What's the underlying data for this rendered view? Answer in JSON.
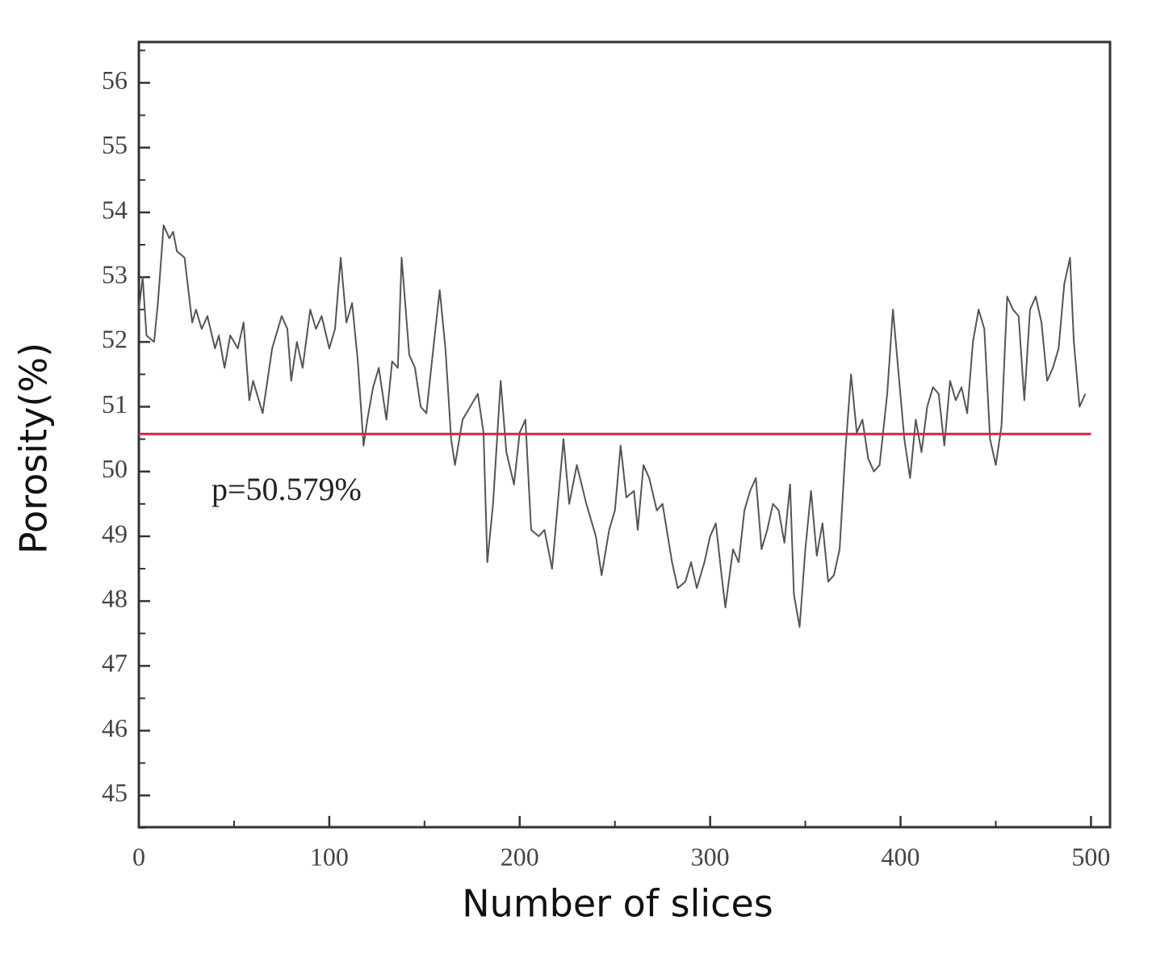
{
  "chart_data": {
    "type": "line",
    "xlabel": "Number of slices",
    "ylabel": "Porosity(%)",
    "x": [
      0,
      2,
      4,
      8,
      10,
      13,
      16,
      18,
      20,
      24,
      28,
      30,
      33,
      36,
      40,
      42,
      45,
      48,
      52,
      55,
      58,
      60,
      65,
      70,
      75,
      78,
      80,
      83,
      86,
      90,
      93,
      96,
      100,
      103,
      106,
      109,
      112,
      115,
      118,
      120,
      123,
      126,
      130,
      133,
      136,
      138,
      142,
      145,
      148,
      151,
      155,
      158,
      161,
      164,
      166,
      170,
      174,
      178,
      181,
      183,
      186,
      190,
      193,
      197,
      200,
      203,
      206,
      210,
      213,
      217,
      220,
      223,
      226,
      230,
      235,
      240,
      243,
      247,
      250,
      253,
      256,
      260,
      262,
      265,
      268,
      272,
      275,
      280,
      283,
      287,
      290,
      293,
      297,
      300,
      303,
      306,
      308,
      312,
      315,
      318,
      321,
      324,
      327,
      330,
      333,
      336,
      339,
      342,
      344,
      347,
      350,
      353,
      356,
      359,
      362,
      365,
      368,
      371,
      374,
      377,
      380,
      383,
      386,
      389,
      393,
      396,
      399,
      402,
      405,
      408,
      411,
      414,
      417,
      420,
      423,
      426,
      429,
      432,
      435,
      438,
      441,
      444,
      447,
      450,
      453,
      456,
      459,
      462,
      465,
      468,
      471,
      474,
      477,
      480,
      483,
      486,
      489,
      491,
      494,
      497
    ],
    "series": [
      {
        "name": "Porosity",
        "color": "#555555",
        "values": [
          52.5,
          53.0,
          52.1,
          52.0,
          52.6,
          53.8,
          53.6,
          53.7,
          53.4,
          53.3,
          52.3,
          52.5,
          52.2,
          52.4,
          51.9,
          52.1,
          51.6,
          52.1,
          51.9,
          52.3,
          51.1,
          51.4,
          50.9,
          51.9,
          52.4,
          52.2,
          51.4,
          52.0,
          51.6,
          52.5,
          52.2,
          52.4,
          51.9,
          52.2,
          53.3,
          52.3,
          52.6,
          51.7,
          50.4,
          50.8,
          51.3,
          51.6,
          50.8,
          51.7,
          51.6,
          53.3,
          51.8,
          51.6,
          51.0,
          50.9,
          52.0,
          52.8,
          51.9,
          50.5,
          50.1,
          50.8,
          51.0,
          51.2,
          50.6,
          48.6,
          49.5,
          51.4,
          50.3,
          49.8,
          50.6,
          50.8,
          49.1,
          49.0,
          49.1,
          48.5,
          49.5,
          50.5,
          49.5,
          50.1,
          49.5,
          49.0,
          48.4,
          49.1,
          49.4,
          50.4,
          49.6,
          49.7,
          49.1,
          50.1,
          49.9,
          49.4,
          49.5,
          48.6,
          48.2,
          48.3,
          48.6,
          48.2,
          48.6,
          49.0,
          49.2,
          48.4,
          47.9,
          48.8,
          48.6,
          49.4,
          49.7,
          49.9,
          48.8,
          49.1,
          49.5,
          49.4,
          48.9,
          49.8,
          48.1,
          47.6,
          48.8,
          49.7,
          48.7,
          49.2,
          48.3,
          48.4,
          48.8,
          50.3,
          51.5,
          50.6,
          50.8,
          50.2,
          50.0,
          50.1,
          51.2,
          52.5,
          51.5,
          50.5,
          49.9,
          50.8,
          50.3,
          51.0,
          51.3,
          51.2,
          50.4,
          51.4,
          51.1,
          51.3,
          50.9,
          52.0,
          52.5,
          52.2,
          50.5,
          50.1,
          50.7,
          52.7,
          52.5,
          52.4,
          51.1,
          52.5,
          52.7,
          52.3,
          51.4,
          51.6,
          51.9,
          52.9,
          53.3,
          52.0,
          51.0,
          51.2
        ]
      }
    ],
    "reference_line": {
      "value": 50.579,
      "label": "p=50.579%",
      "color": "#e0204a"
    },
    "xlim": [
      0,
      510
    ],
    "ylim": [
      44.51,
      56.63
    ],
    "xticks": [
      0,
      100,
      200,
      300,
      400,
      500
    ],
    "xminorticks": [
      50,
      150,
      250,
      350,
      450
    ],
    "yticks": [
      45,
      46,
      47,
      48,
      49,
      50,
      51,
      52,
      53,
      54,
      55,
      56
    ],
    "yminorticks": [
      44.5,
      45.5,
      46.5,
      47.5,
      48.5,
      49.5,
      50.5,
      51.5,
      52.5,
      53.5,
      54.5,
      55.5,
      56.5
    ]
  }
}
